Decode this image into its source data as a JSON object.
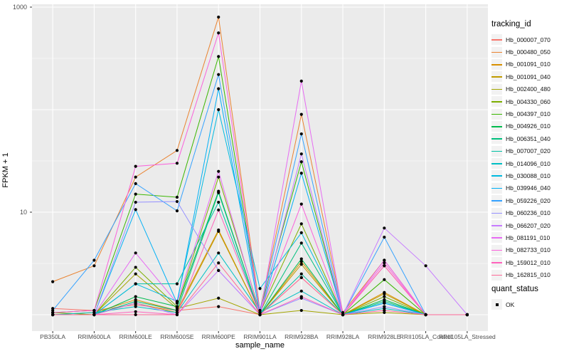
{
  "figure": {
    "ylabel": "FPKM + 1",
    "xlabel": "sample_name",
    "y_ticks": [
      {
        "label": "1000",
        "value": 1000
      },
      {
        "label": "10",
        "value": 10
      }
    ],
    "legend": {
      "tracking_title": "tracking_id",
      "quant_title": "quant_status",
      "quant_label": "OK"
    },
    "colors": {
      "panel_bg": "#EBEBEB",
      "grid": "#FFFFFF",
      "tick": "#333333",
      "tick_label": "#4D4D4D",
      "point": "#000000",
      "legend_key_bg": "#F2F2F2"
    }
  },
  "chart_data": {
    "type": "line",
    "title": "",
    "xlabel": "sample_name",
    "ylabel": "FPKM + 1",
    "y_scale": "log10",
    "ylim": [
      1,
      1000
    ],
    "grid": true,
    "legend_position": "right",
    "point_marker": "filled-square-black",
    "categories": [
      "PB350LA",
      "RRIM600LA",
      "RRIM600LE",
      "RRIM600SE",
      "RRIM600PE",
      "RRIM901LA",
      "RRIM928BA",
      "RRIM928LA",
      "RRIM928LE",
      "RRII105LA_Control",
      "RRII105LA_Stressed"
    ],
    "series": [
      {
        "name": "Hb_000007_070",
        "color": "#F8766D",
        "values": [
          1.15,
          1.1,
          1.25,
          1.1,
          1.2,
          1.0,
          2.3,
          1.0,
          3.0,
          1.0,
          1.0
        ]
      },
      {
        "name": "Hb_000480_050",
        "color": "#EA8331",
        "values": [
          2.1,
          3.0,
          22,
          40,
          800,
          1.1,
          90,
          1.05,
          3.4,
          1.0,
          1.0
        ]
      },
      {
        "name": "Hb_001091_010",
        "color": "#D89000",
        "values": [
          1.0,
          1.05,
          1.4,
          1.1,
          6.7,
          1.0,
          3.3,
          1.0,
          1.65,
          1.0,
          1.0
        ]
      },
      {
        "name": "Hb_001091_040",
        "color": "#C09B00",
        "values": [
          1.0,
          1.0,
          1.3,
          1.05,
          6.5,
          1.0,
          3.1,
          1.0,
          1.6,
          1.0,
          1.0
        ]
      },
      {
        "name": "Hb_002400_480",
        "color": "#A3A500",
        "values": [
          1.0,
          1.0,
          2.5,
          1.15,
          1.45,
          1.0,
          1.1,
          1.0,
          1.05,
          1.0,
          1.0
        ]
      },
      {
        "name": "Hb_004330_060",
        "color": "#7CAE00",
        "values": [
          1.05,
          1.0,
          2.9,
          1.2,
          22,
          1.05,
          7.7,
          1.0,
          1.5,
          1.0,
          1.0
        ]
      },
      {
        "name": "Hb_004397_010",
        "color": "#39B600",
        "values": [
          1.05,
          1.1,
          15,
          14,
          330,
          1.1,
          31,
          1.0,
          2.2,
          1.0,
          1.0
        ]
      },
      {
        "name": "Hb_004926_010",
        "color": "#00BB4E",
        "values": [
          1.0,
          1.0,
          1.5,
          1.2,
          16,
          1.0,
          3.5,
          1.0,
          1.4,
          1.0,
          1.0
        ]
      },
      {
        "name": "Hb_006351_040",
        "color": "#00BF7D",
        "values": [
          1.0,
          1.0,
          1.35,
          1.1,
          15.5,
          1.0,
          5.0,
          1.0,
          1.35,
          1.0,
          1.0
        ]
      },
      {
        "name": "Hb_007007_020",
        "color": "#00C1A3",
        "values": [
          1.0,
          1.0,
          2.0,
          2.0,
          12.5,
          1.0,
          2.5,
          1.0,
          1.3,
          1.0,
          1.0
        ]
      },
      {
        "name": "Hb_014096_010",
        "color": "#00BFC4",
        "values": [
          1.0,
          1.05,
          1.2,
          1.05,
          4.0,
          1.05,
          1.7,
          1.0,
          1.15,
          1.0,
          1.0
        ]
      },
      {
        "name": "Hb_030088_010",
        "color": "#00BAE0",
        "values": [
          1.0,
          1.0,
          2.0,
          1.35,
          100,
          1.8,
          6.3,
          1.0,
          1.3,
          1.0,
          1.0
        ]
      },
      {
        "name": "Hb_039946_040",
        "color": "#00B0F6",
        "values": [
          1.0,
          1.0,
          10.6,
          1.3,
          160,
          1.0,
          24,
          1.0,
          1.3,
          1.0,
          1.0
        ]
      },
      {
        "name": "Hb_059226_020",
        "color": "#35A2FF",
        "values": [
          1.1,
          3.4,
          19,
          10.3,
          220,
          1.1,
          58,
          1.0,
          5.7,
          1.0,
          1.0
        ]
      },
      {
        "name": "Hb_060236_010",
        "color": "#9590FF",
        "values": [
          1.0,
          1.0,
          12.5,
          12.7,
          2.7,
          1.0,
          1.45,
          1.0,
          1.2,
          1.0,
          1.0
        ]
      },
      {
        "name": "Hb_066207_020",
        "color": "#C77CFF",
        "values": [
          1.0,
          1.0,
          1.3,
          1.0,
          2.7,
          1.0,
          37,
          1.0,
          7.0,
          3.0,
          1.0
        ]
      },
      {
        "name": "Hb_081191_010",
        "color": "#E76BF3",
        "values": [
          1.0,
          1.0,
          4.0,
          1.3,
          25,
          1.0,
          190,
          1.0,
          3.4,
          1.0,
          1.0
        ]
      },
      {
        "name": "Hb_082733_010",
        "color": "#FA62DB",
        "values": [
          1.05,
          1.1,
          28,
          30,
          560,
          1.05,
          12,
          1.0,
          3.2,
          1.0,
          1.0
        ]
      },
      {
        "name": "Hb_159012_010",
        "color": "#FF62BC",
        "values": [
          1.0,
          1.0,
          1.07,
          1.0,
          10.5,
          1.0,
          1.5,
          1.0,
          3.0,
          1.0,
          1.0
        ]
      },
      {
        "name": "Hb_162815_010",
        "color": "#FF6A98",
        "values": [
          1.0,
          1.0,
          1.0,
          1.0,
          3.2,
          1.0,
          2.3,
          1.0,
          1.1,
          1.0,
          1.0
        ]
      }
    ]
  }
}
